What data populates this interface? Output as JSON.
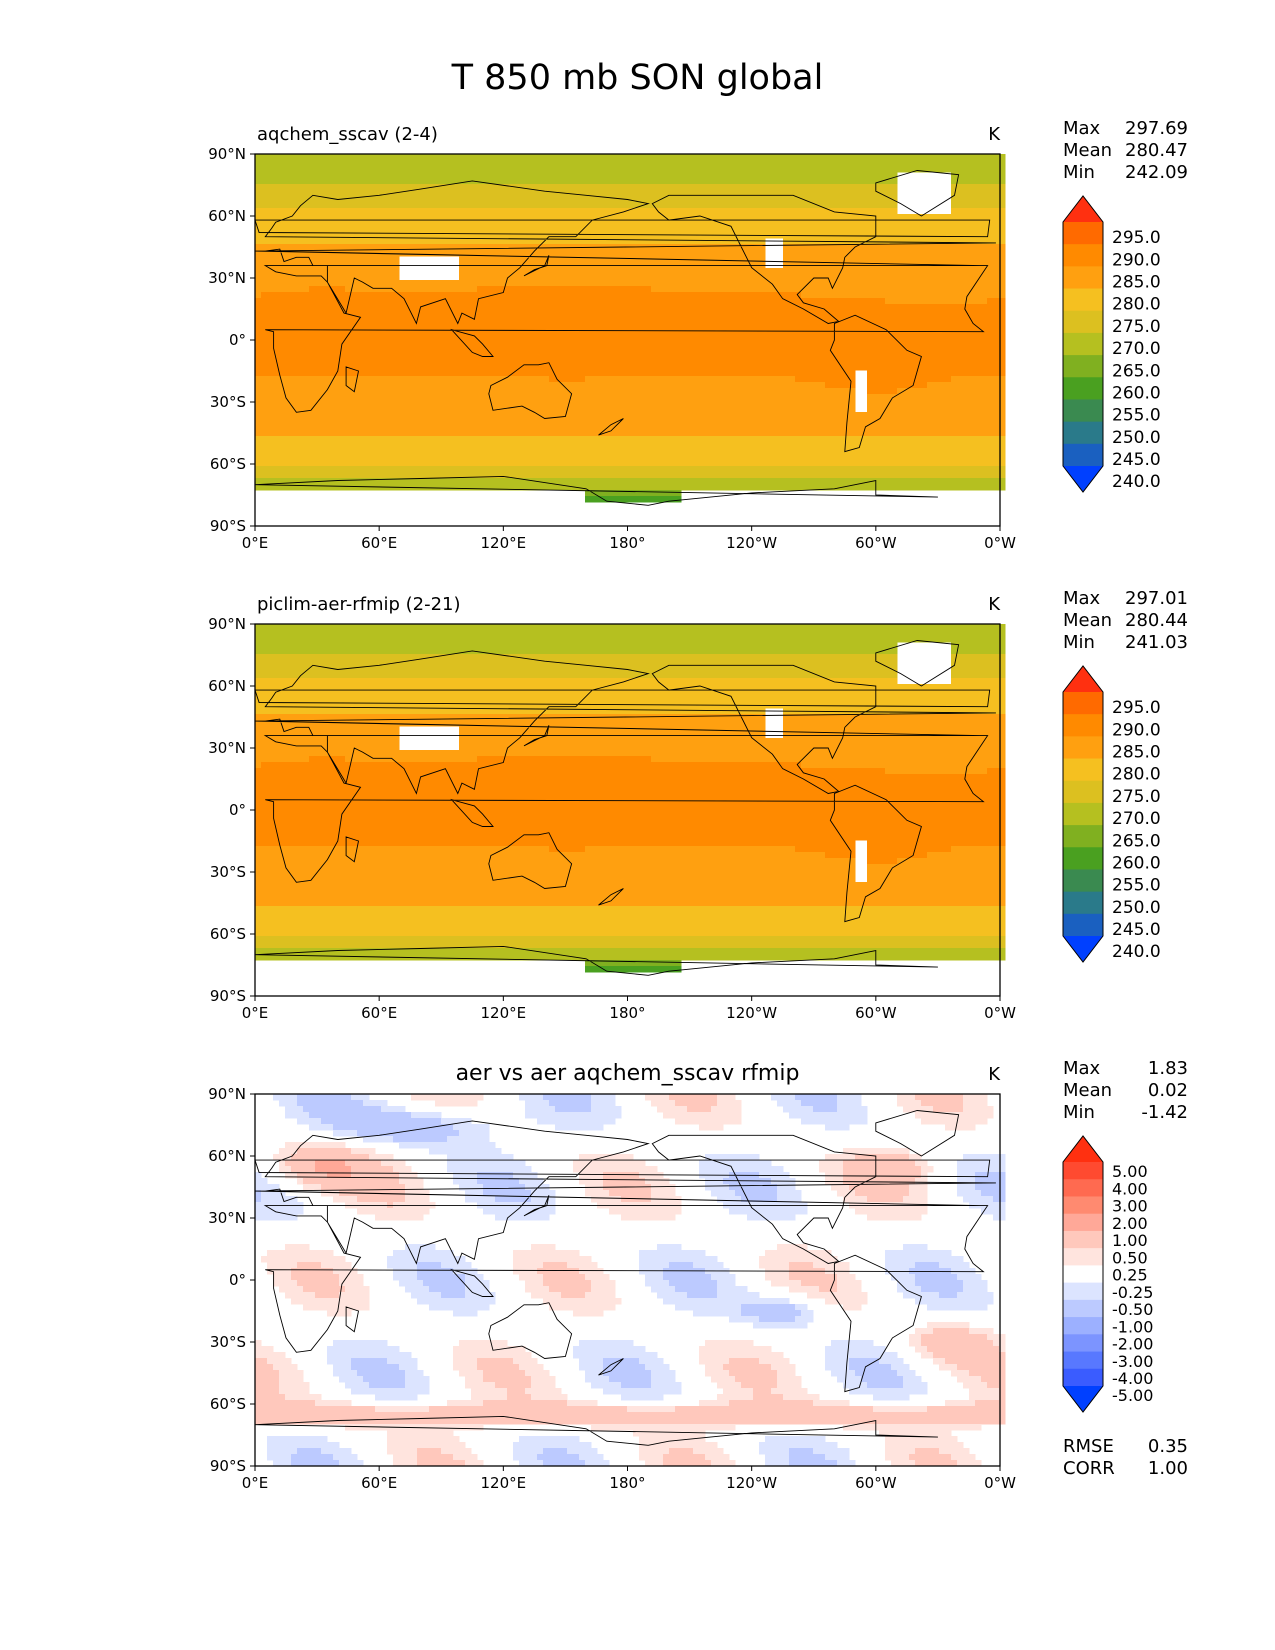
{
  "chart_data": {
    "type": "heatmap",
    "title": "T 850 mb SON global",
    "x_ticks": [
      "0°E",
      "60°E",
      "120°E",
      "180°",
      "120°W",
      "60°W",
      "0°W"
    ],
    "y_ticks": [
      "90°N",
      "60°N",
      "30°N",
      "0°",
      "30°S",
      "60°S",
      "90°S"
    ],
    "xlim": [
      0,
      360
    ],
    "ylim": [
      -90,
      90
    ],
    "panels": [
      {
        "title": "aqchem_sscav (2-4)",
        "title_align": "left",
        "units": "K",
        "stats": [
          {
            "label": "Max",
            "value": "297.69"
          },
          {
            "label": "Mean",
            "value": "280.47"
          },
          {
            "label": "Min",
            "value": "242.09"
          }
        ],
        "colorbar": {
          "levels": [
            "295.0",
            "290.0",
            "285.0",
            "280.0",
            "275.0",
            "270.0",
            "265.0",
            "260.0",
            "255.0",
            "250.0",
            "245.0",
            "240.0"
          ],
          "colors": [
            "#ff3010",
            "#ff6a00",
            "#ff8a00",
            "#ffa010",
            "#f5c020",
            "#dcc020",
            "#b5c020",
            "#80b020",
            "#4aa020",
            "#3a8a50",
            "#2a7a8a",
            "#1a60c0",
            "#0040ff"
          ]
        },
        "metrics": []
      },
      {
        "title": "piclim-aer-rfmip (2-21)",
        "title_align": "left",
        "units": "K",
        "stats": [
          {
            "label": "Max",
            "value": "297.01"
          },
          {
            "label": "Mean",
            "value": "280.44"
          },
          {
            "label": "Min",
            "value": "241.03"
          }
        ],
        "colorbar": {
          "levels": [
            "295.0",
            "290.0",
            "285.0",
            "280.0",
            "275.0",
            "270.0",
            "265.0",
            "260.0",
            "255.0",
            "250.0",
            "245.0",
            "240.0"
          ],
          "colors": [
            "#ff3010",
            "#ff6a00",
            "#ff8a00",
            "#ffa010",
            "#f5c020",
            "#dcc020",
            "#b5c020",
            "#80b020",
            "#4aa020",
            "#3a8a50",
            "#2a7a8a",
            "#1a60c0",
            "#0040ff"
          ]
        },
        "metrics": []
      },
      {
        "title": "aer vs aer aqchem_sscav rfmip",
        "title_align": "center",
        "units": "K",
        "stats": [
          {
            "label": "Max",
            "value": "1.83"
          },
          {
            "label": "Mean",
            "value": "0.02"
          },
          {
            "label": "Min",
            "value": "-1.42"
          }
        ],
        "colorbar": {
          "levels": [
            "5.00",
            "4.00",
            "3.00",
            "2.00",
            "1.00",
            "0.50",
            "0.25",
            "-0.25",
            "-0.50",
            "-1.00",
            "-2.00",
            "-3.00",
            "-4.00",
            "-5.00"
          ],
          "colors": [
            "#ff3010",
            "#ff4a30",
            "#ff6a50",
            "#ff8a70",
            "#ffa898",
            "#ffc8bc",
            "#ffe4de",
            "#ffffff",
            "#dce4ff",
            "#bccaff",
            "#9cb0ff",
            "#7c94ff",
            "#5878ff",
            "#3a5cff",
            "#0040ff"
          ]
        },
        "metrics": [
          {
            "label": "RMSE",
            "value": "0.35"
          },
          {
            "label": "CORR",
            "value": "1.00"
          }
        ]
      }
    ]
  }
}
